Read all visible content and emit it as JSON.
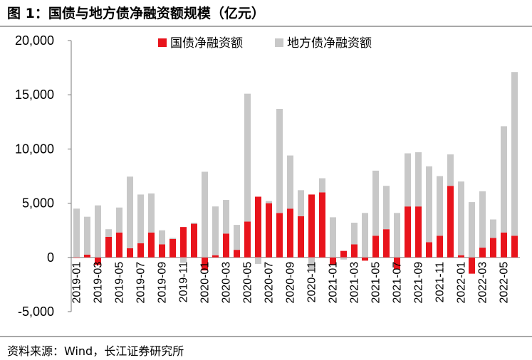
{
  "figure": {
    "title": "图 1：国债与地方债净融资额规模（亿元）",
    "source": "资料来源：Wind，长江证券研究所"
  },
  "colors": {
    "national": "#e8141c",
    "local": "#c8c8c8"
  },
  "chart_data": {
    "type": "bar",
    "stacked": true,
    "title": "",
    "xlabel": "",
    "ylabel": "",
    "ylim": [
      -5000,
      20000
    ],
    "ytick_values": [
      -5000,
      0,
      5000,
      10000,
      15000,
      20000
    ],
    "ytick_labels": [
      "-5,000",
      "0",
      "5,000",
      "10,000",
      "15,000",
      "20,000"
    ],
    "xtick_labels": [
      "2019-01",
      "2019-03",
      "2019-05",
      "2019-07",
      "2019-09",
      "2019-11",
      "2020-01",
      "2020-03",
      "2020-05",
      "2020-07",
      "2020-09",
      "2020-11",
      "2021-01",
      "2021-03",
      "2021-05",
      "2021-07",
      "2021-09",
      "2021-11",
      "2022-01",
      "2022-03",
      "2022-05"
    ],
    "legend_position": "top-center",
    "grid": false,
    "categories": [
      "2019-01",
      "2019-02",
      "2019-03",
      "2019-04",
      "2019-05",
      "2019-06",
      "2019-07",
      "2019-08",
      "2019-09",
      "2019-10",
      "2019-11",
      "2019-12",
      "2020-01",
      "2020-02",
      "2020-03",
      "2020-04",
      "2020-05",
      "2020-06",
      "2020-07",
      "2020-08",
      "2020-09",
      "2020-10",
      "2020-11",
      "2020-12",
      "2021-01",
      "2021-02",
      "2021-03",
      "2021-04",
      "2021-05",
      "2021-06",
      "2021-07",
      "2021-08",
      "2021-09",
      "2021-10",
      "2021-11",
      "2021-12",
      "2022-01",
      "2022-02",
      "2022-03",
      "2022-04",
      "2022-05",
      "2022-06"
    ],
    "series": [
      {
        "name": "国债净融资额",
        "values": [
          -50,
          250,
          -700,
          1900,
          2300,
          850,
          1300,
          2300,
          1200,
          1700,
          2800,
          3100,
          -1200,
          200,
          2200,
          700,
          3300,
          5600,
          5000,
          4100,
          4500,
          3800,
          5800,
          6000,
          -700,
          600,
          1200,
          -300,
          2000,
          2600,
          -1100,
          4700,
          4700,
          1400,
          2000,
          6600,
          200,
          -1500,
          900,
          1800,
          2300,
          2000
        ]
      },
      {
        "name": "地方债净融资额",
        "values": [
          4500,
          3500,
          4800,
          700,
          2300,
          6600,
          4500,
          3600,
          1300,
          100,
          -500,
          100,
          7900,
          4500,
          3100,
          2300,
          11800,
          -600,
          200,
          9600,
          4900,
          2400,
          -1100,
          1300,
          3700,
          -200,
          2000,
          4100,
          6000,
          4000,
          4100,
          4900,
          5000,
          7000,
          5500,
          2900,
          6800,
          5100,
          5200,
          1700,
          9800,
          15100
        ]
      }
    ]
  }
}
